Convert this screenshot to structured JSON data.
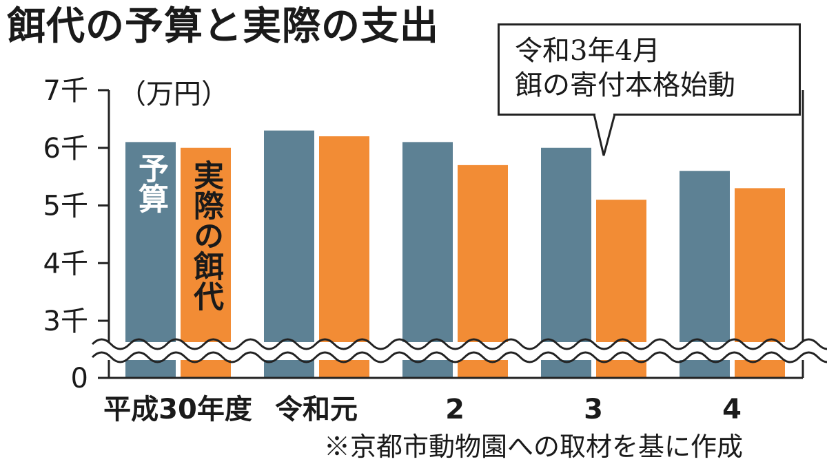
{
  "title": "餌代の予算と実際の支出",
  "unit_label": "（万円）",
  "source_note": "※京都市動物園への取材を基に作成",
  "annotation": {
    "line1": "令和3年4月",
    "line2": "餌の寄付本格始動"
  },
  "colors": {
    "budget": "#5d8194",
    "actual": "#f28c35"
  },
  "chart_data": {
    "type": "bar",
    "title": "餌代の予算と実際の支出",
    "ylabel": "（万円）",
    "categories": [
      "平成30年度",
      "令和元",
      "2",
      "3",
      "4"
    ],
    "y_ticks": [
      {
        "value": 0,
        "label": "0"
      },
      {
        "value": 3000,
        "label": "3千"
      },
      {
        "value": 4000,
        "label": "4千"
      },
      {
        "value": 5000,
        "label": "5千"
      },
      {
        "value": 6000,
        "label": "6千"
      },
      {
        "value": 7000,
        "label": "7千"
      }
    ],
    "axis_break": "between 0 and 3千",
    "ylim": [
      0,
      7000
    ],
    "series": [
      {
        "name": "予算",
        "values": [
          6100,
          6300,
          6100,
          6000,
          5600
        ]
      },
      {
        "name": "実際の餌代",
        "values": [
          6000,
          6200,
          5700,
          5100,
          5300
        ]
      }
    ],
    "series_labels": {
      "budget": "予算",
      "actual": "実際の餌代"
    }
  }
}
